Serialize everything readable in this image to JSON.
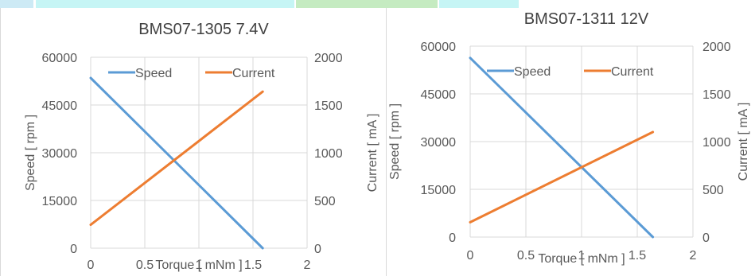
{
  "colors": {
    "speed": "#5b9bd5",
    "current": "#ed7d31",
    "grid": "#d9d9d9",
    "text": "#595959",
    "title": "#404040",
    "strip_a": "#cdeaf5",
    "strip_b": "#c6f5f5",
    "strip_c": "#c5ebc1",
    "strip_d": "#c6f5f5"
  },
  "chart_data": [
    {
      "type": "line",
      "title": "BMS07-1305  7.4V",
      "xlabel": "Torque [ mNm ]",
      "ylabel": "Speed [ rpm ]",
      "y2label": "Current [ mA ]",
      "xlim": [
        0,
        2
      ],
      "ylim": [
        0,
        60000
      ],
      "y2lim": [
        0,
        2000
      ],
      "x_ticks": [
        "0",
        "0.5",
        "1",
        "1.5",
        "2"
      ],
      "y_ticks": [
        "0",
        "15000",
        "30000",
        "45000",
        "60000"
      ],
      "y2_ticks": [
        "0",
        "500",
        "1000",
        "1500",
        "2000"
      ],
      "legend_position": "top",
      "grid": true,
      "series": [
        {
          "name": "Speed",
          "axis": "left",
          "color": "#5b9bd5",
          "x": [
            0,
            1.59
          ],
          "y": [
            53500,
            0
          ]
        },
        {
          "name": "Current",
          "axis": "right",
          "color": "#ed7d31",
          "x": [
            0,
            1.59
          ],
          "y": [
            245,
            1640
          ]
        }
      ]
    },
    {
      "type": "line",
      "title": "BMS07-1311  12V",
      "xlabel": "Torque [ mNm ]",
      "ylabel": "Speed [ rpm ]",
      "y2label": "Current [ mA ]",
      "xlim": [
        0,
        2
      ],
      "ylim": [
        0,
        60000
      ],
      "y2lim": [
        0,
        2000
      ],
      "x_ticks": [
        "0",
        "0.5",
        "1",
        "1.5",
        "2"
      ],
      "y_ticks": [
        "0",
        "15000",
        "30000",
        "45000",
        "60000"
      ],
      "y2_ticks": [
        "0",
        "500",
        "1000",
        "1500",
        "2000"
      ],
      "legend_position": "top",
      "grid": true,
      "series": [
        {
          "name": "Speed",
          "axis": "left",
          "color": "#5b9bd5",
          "x": [
            0,
            1.64
          ],
          "y": [
            56300,
            0
          ]
        },
        {
          "name": "Current",
          "axis": "right",
          "color": "#ed7d31",
          "x": [
            0,
            1.64
          ],
          "y": [
            155,
            1100
          ]
        }
      ]
    }
  ]
}
